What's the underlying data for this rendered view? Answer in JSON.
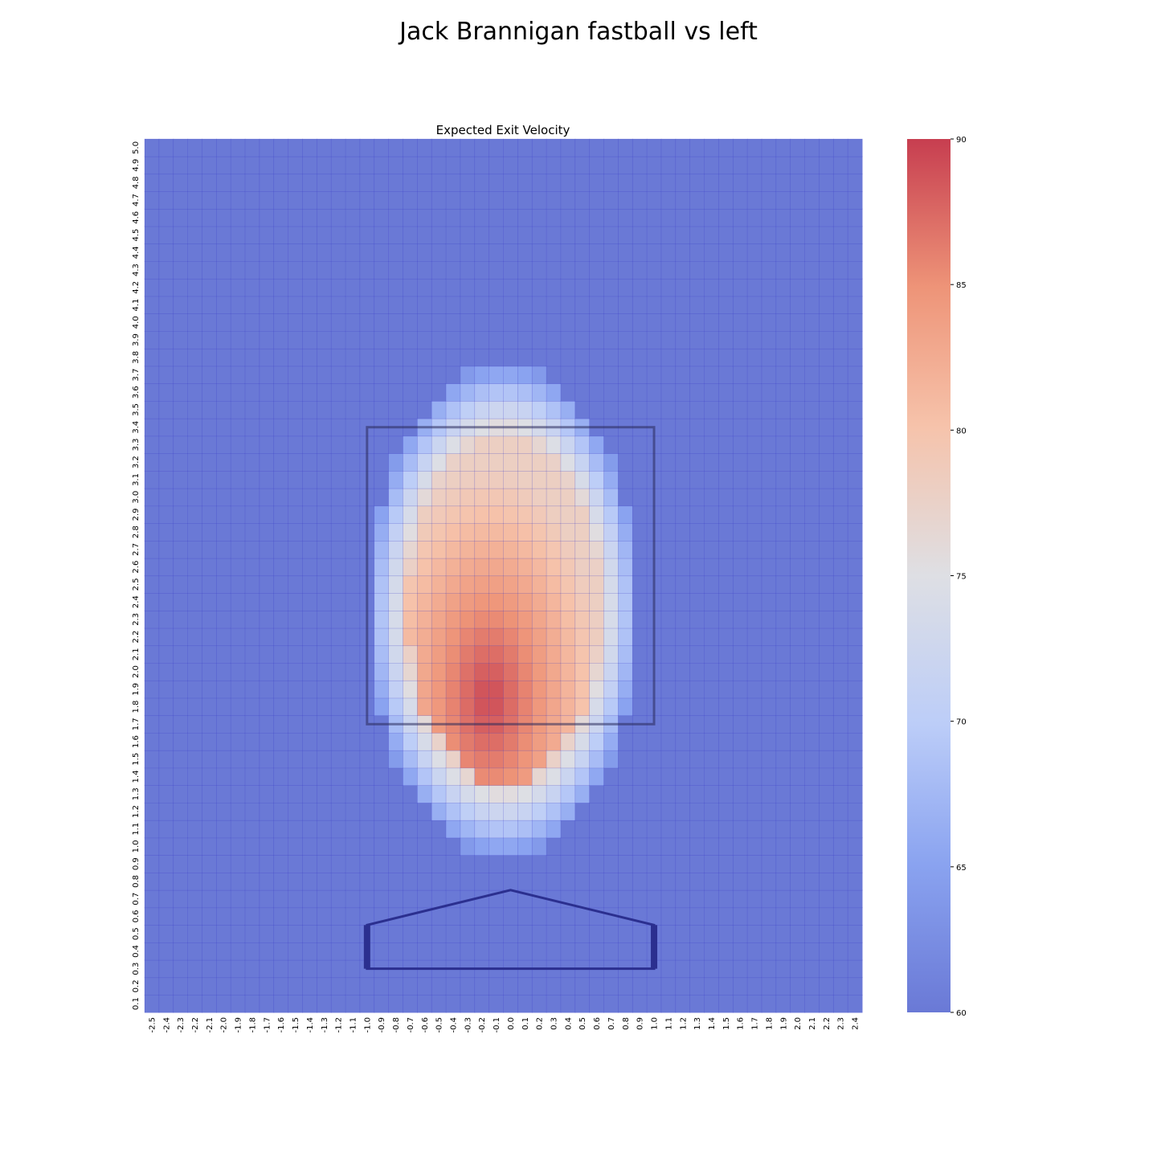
{
  "title": "Jack Brannigan fastball vs left",
  "chart_data": {
    "type": "heatmap",
    "title": "Expected Exit Velocity",
    "xlabel": "",
    "ylabel": "",
    "x_tick_labels": [
      "-2.5",
      "-2.4",
      "-2.3",
      "-2.2",
      "-2.1",
      "-2.0",
      "-1.9",
      "-1.8",
      "-1.7",
      "-1.6",
      "-1.5",
      "-1.4",
      "-1.3",
      "-1.2",
      "-1.1",
      "-1.0",
      "-0.9",
      "-0.8",
      "-0.7",
      "-0.6",
      "-0.5",
      "-0.4",
      "-0.3",
      "-0.2",
      "-0.1",
      "0.0",
      "0.1",
      "0.2",
      "0.3",
      "0.4",
      "0.5",
      "0.6",
      "0.7",
      "0.8",
      "0.9",
      "1.0",
      "1.1",
      "1.2",
      "1.3",
      "1.4",
      "1.5",
      "1.6",
      "1.7",
      "1.8",
      "1.9",
      "2.0",
      "2.1",
      "2.2",
      "2.3",
      "2.4"
    ],
    "y_tick_labels": [
      "0.1",
      "0.2",
      "0.3",
      "0.4",
      "0.5",
      "0.6",
      "0.7",
      "0.8",
      "0.9",
      "1.0",
      "1.1",
      "1.2",
      "1.3",
      "1.4",
      "1.5",
      "1.6",
      "1.7",
      "1.8",
      "1.9",
      "2.0",
      "2.1",
      "2.2",
      "2.3",
      "2.4",
      "2.5",
      "2.6",
      "2.7",
      "2.8",
      "2.9",
      "3.0",
      "3.1",
      "3.2",
      "3.3",
      "3.4",
      "3.5",
      "3.6",
      "3.7",
      "3.8",
      "3.9",
      "4.0",
      "4.1",
      "4.2",
      "4.3",
      "4.4",
      "4.5",
      "4.6",
      "4.7",
      "4.8",
      "4.9",
      "5.0"
    ],
    "colorbar": {
      "min": 60,
      "max": 90,
      "ticks": [
        "60",
        "65",
        "70",
        "75",
        "80",
        "85",
        "90"
      ],
      "colormap": "coolwarm"
    },
    "value_model": {
      "description_free": true,
      "center_x": -0.05,
      "center_y": 2.35,
      "peak_value": 89.5,
      "peak_x": -0.15,
      "peak_y": 1.85,
      "edge_value": 72,
      "radius_x": 0.95,
      "radius_y": 1.4,
      "region_x_range": [
        -1.1,
        1.5
      ],
      "region_y_range": [
        1.2,
        4.0
      ],
      "background_value": 60
    },
    "strike_zone": {
      "x": [
        -1.0,
        1.0
      ],
      "y": [
        1.7,
        3.4
      ]
    },
    "home_plate": {
      "x": [
        -1.0,
        1.0
      ],
      "bottom_y": 0.3,
      "shoulder_y": 0.55,
      "apex_y": 0.75
    }
  }
}
